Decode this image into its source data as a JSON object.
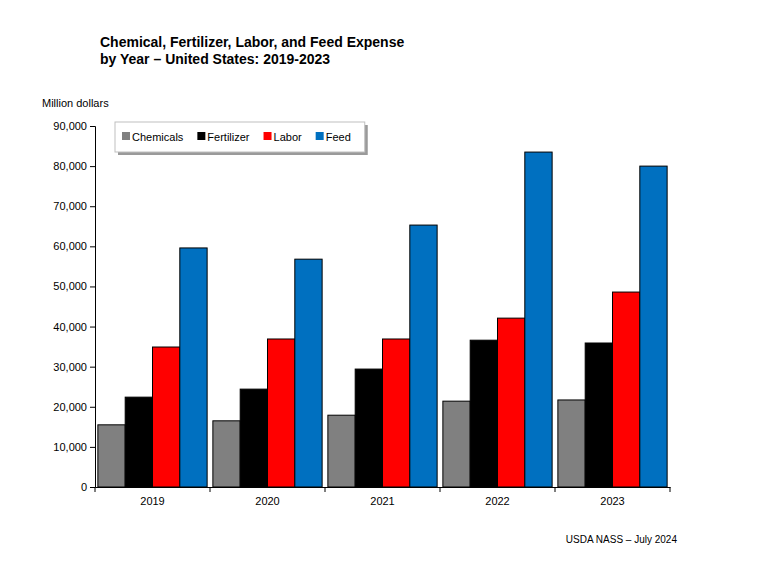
{
  "chart_data": {
    "type": "bar",
    "title": "Chemical, Fertilizer, Labor, and Feed Expense\nby Year – United States: 2019-2023",
    "y_label": "Million dollars",
    "annotations": [
      "USDA NASS – July 2024"
    ],
    "categories": [
      "2019",
      "2020",
      "2021",
      "2022",
      "2023"
    ],
    "series": [
      {
        "name": "Chemicals",
        "color": "#808080",
        "values": [
          15500,
          16500,
          17900,
          21400,
          21700
        ]
      },
      {
        "name": "Fertilizer",
        "color": "#000000",
        "values": [
          22400,
          24400,
          29400,
          36600,
          35900
        ]
      },
      {
        "name": "Labor",
        "color": "#ff0000",
        "values": [
          34900,
          36900,
          36900,
          42100,
          48600
        ]
      },
      {
        "name": "Feed",
        "color": "#0070c0",
        "values": [
          59600,
          56800,
          65300,
          83500,
          80000
        ]
      }
    ],
    "ylim": [
      0,
      90000
    ],
    "yticks": [
      0,
      {
        "value": 10000,
        "label": "10,000"
      },
      {
        "value": 20000,
        "label": "20,000"
      },
      {
        "value": 30000,
        "label": "30,000"
      },
      {
        "value": 40000,
        "label": "40,000"
      },
      {
        "value": 50000,
        "label": "50,000"
      },
      {
        "value": 60000,
        "label": "60,000"
      },
      {
        "value": 70000,
        "label": "70,000"
      },
      {
        "value": 80000,
        "label": "80,000"
      },
      {
        "value": 90000,
        "label": "90,000"
      }
    ],
    "grid": false,
    "legend": "upper left"
  }
}
